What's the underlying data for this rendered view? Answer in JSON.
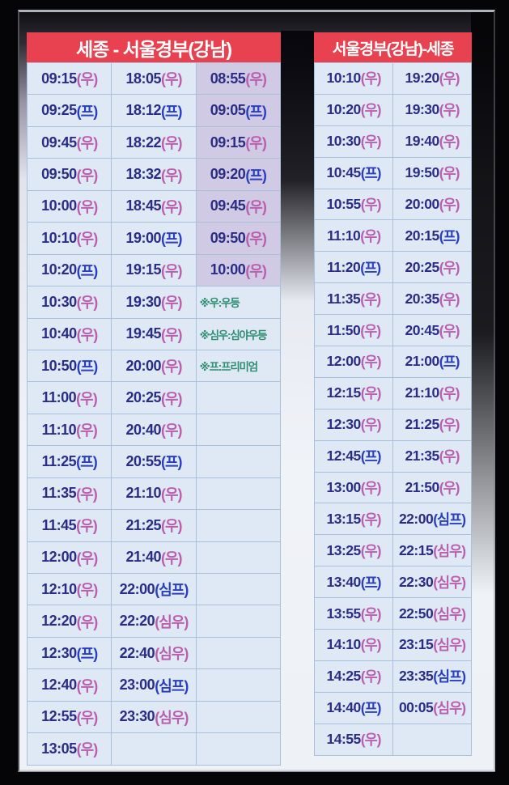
{
  "left_table": {
    "title": "세종 - 서울경부(강남)",
    "columns": 3,
    "rows": [
      [
        "09:15(우)",
        "18:05(우)",
        "08:55(우)"
      ],
      [
        "09:25(프)",
        "18:12(프)",
        "09:05(프)"
      ],
      [
        "09:45(우)",
        "18:22(우)",
        "09:15(우)"
      ],
      [
        "09:50(우)",
        "18:32(우)",
        "09:20(프)"
      ],
      [
        "10:00(우)",
        "18:45(우)",
        "09:45(우)"
      ],
      [
        "10:10(우)",
        "19:00(프)",
        "09:50(우)"
      ],
      [
        "10:20(프)",
        "19:15(우)",
        "10:00(우)"
      ],
      [
        "10:30(우)",
        "19:30(우)",
        "※우:우등"
      ],
      [
        "10:40(우)",
        "19:45(우)",
        "※심우:심야우등"
      ],
      [
        "10:50(프)",
        "20:00(우)",
        "※프:프리미엄"
      ],
      [
        "11:00(우)",
        "20:25(우)",
        ""
      ],
      [
        "11:10(우)",
        "20:40(우)",
        ""
      ],
      [
        "11:25(프)",
        "20:55(프)",
        ""
      ],
      [
        "11:35(우)",
        "21:10(우)",
        ""
      ],
      [
        "11:45(우)",
        "21:25(우)",
        ""
      ],
      [
        "12:00(우)",
        "21:40(우)",
        ""
      ],
      [
        "12:10(우)",
        "22:00(심프)",
        ""
      ],
      [
        "12:20(우)",
        "22:20(심우)",
        ""
      ],
      [
        "12:30(프)",
        "22:40(심우)",
        ""
      ],
      [
        "12:40(우)",
        "23:00(심프)",
        ""
      ],
      [
        "12:55(우)",
        "23:30(심우)",
        ""
      ],
      [
        "13:05(우)",
        "",
        ""
      ]
    ]
  },
  "right_table": {
    "title": "서울경부(강남)-세종",
    "columns": 2,
    "rows": [
      [
        "10:10(우)",
        "19:20(우)"
      ],
      [
        "10:20(우)",
        "19:30(우)"
      ],
      [
        "10:30(우)",
        "19:40(우)"
      ],
      [
        "10:45(프)",
        "19:50(우)"
      ],
      [
        "10:55(우)",
        "20:00(우)"
      ],
      [
        "11:10(우)",
        "20:15(프)"
      ],
      [
        "11:20(프)",
        "20:25(우)"
      ],
      [
        "11:35(우)",
        "20:35(우)"
      ],
      [
        "11:50(우)",
        "20:45(우)"
      ],
      [
        "12:00(우)",
        "21:00(프)"
      ],
      [
        "12:15(우)",
        "21:10(우)"
      ],
      [
        "12:30(우)",
        "21:25(우)"
      ],
      [
        "12:45(프)",
        "21:35(우)"
      ],
      [
        "13:00(우)",
        "21:50(우)"
      ],
      [
        "13:15(우)",
        "22:00(심프)"
      ],
      [
        "13:25(우)",
        "22:15(심우)"
      ],
      [
        "13:40(프)",
        "22:30(심우)"
      ],
      [
        "13:55(우)",
        "22:50(심우)"
      ],
      [
        "14:10(우)",
        "23:15(심우)"
      ],
      [
        "14:25(우)",
        "23:35(심프)"
      ],
      [
        "14:40(프)",
        "00:05(심우)"
      ],
      [
        "14:55(우)",
        ""
      ]
    ]
  },
  "colors": {
    "header_bg": "#e84250",
    "header_text": "#ffffff",
    "cell_bg": "#dfe9f6",
    "highlight_cell_bg": "#d1cae4",
    "grid_border": "#a9c0da",
    "time_text": "#2b2d84",
    "suffix_u": "#b95fae",
    "suffix_p": "#2a3fbe",
    "note_text": "#2e8e71"
  }
}
